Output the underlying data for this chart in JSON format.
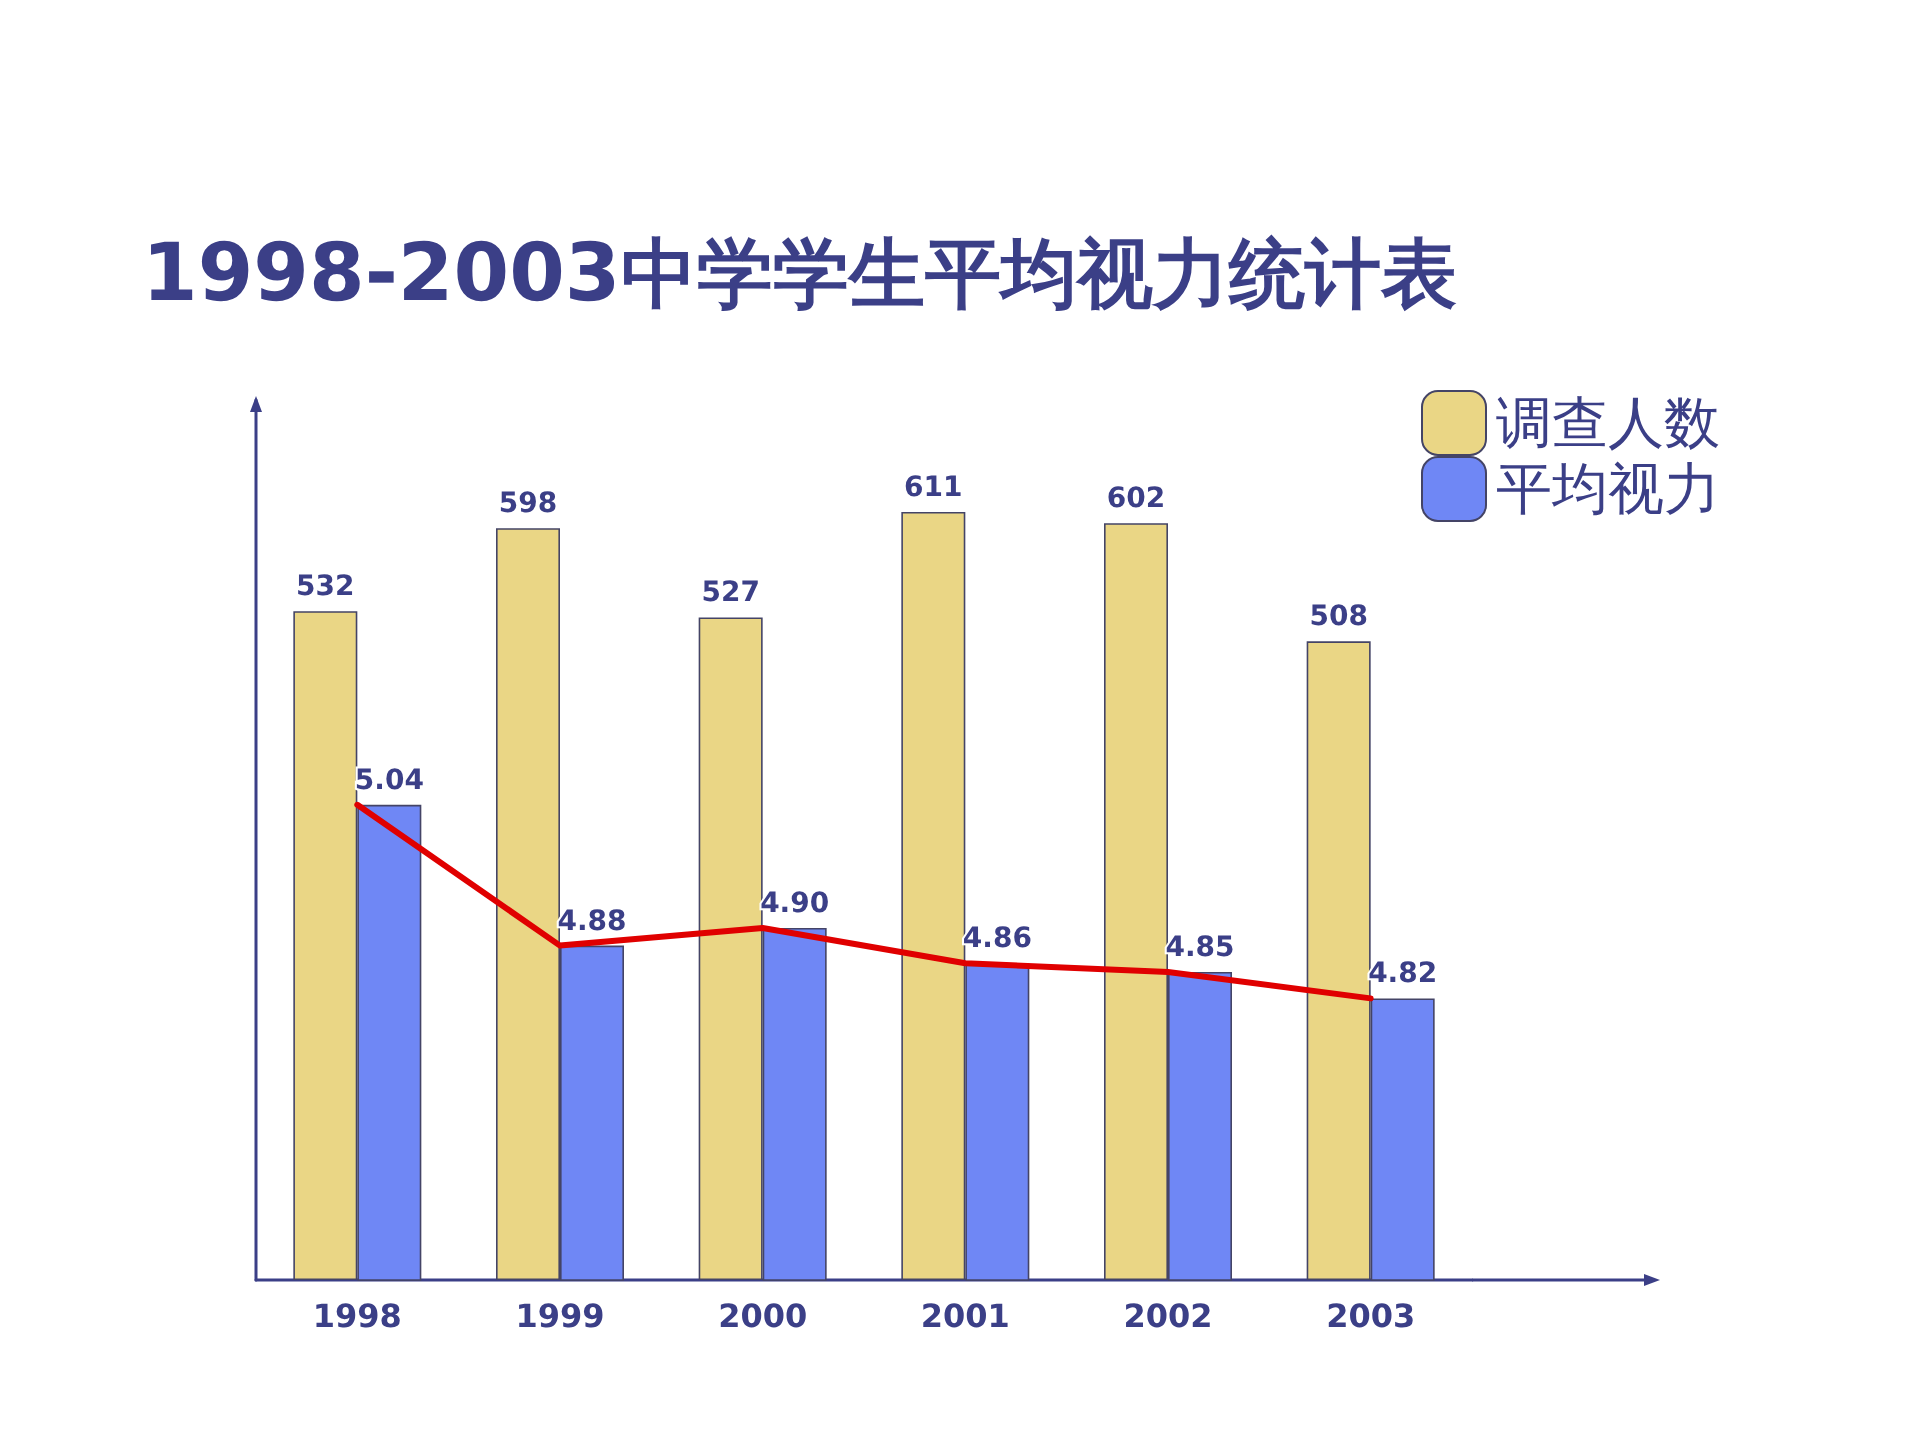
{
  "chart_data": {
    "type": "bar",
    "title": "1998-2003中学学生平均视力统计表",
    "categories": [
      "1998",
      "1999",
      "2000",
      "2001",
      "2002",
      "2003"
    ],
    "series": [
      {
        "name": "调查人数",
        "color": "#ead685",
        "values": [
          532,
          598,
          527,
          611,
          602,
          508
        ],
        "value_labels": [
          "532",
          "598",
          "527",
          "611",
          "602",
          "508"
        ]
      },
      {
        "name": "平均视力",
        "color": "#6f87f5",
        "axis": "y2",
        "values": [
          5.04,
          4.88,
          4.9,
          4.86,
          4.85,
          4.82
        ],
        "value_labels": [
          "5.04",
          "4.88",
          "4.90",
          "4.86",
          "4.85",
          "4.82"
        ]
      },
      {
        "type": "line",
        "color": "#e00000",
        "axis": "y2",
        "marker": "none",
        "line_style": "solid",
        "values": [
          5.04,
          4.88,
          4.9,
          4.86,
          4.85,
          4.82
        ]
      }
    ],
    "ylim": [
      0,
      700
    ],
    "y2lim": [
      4.5,
      5.5
    ],
    "tick_labels": "x",
    "grid": false,
    "legend": "top right"
  }
}
